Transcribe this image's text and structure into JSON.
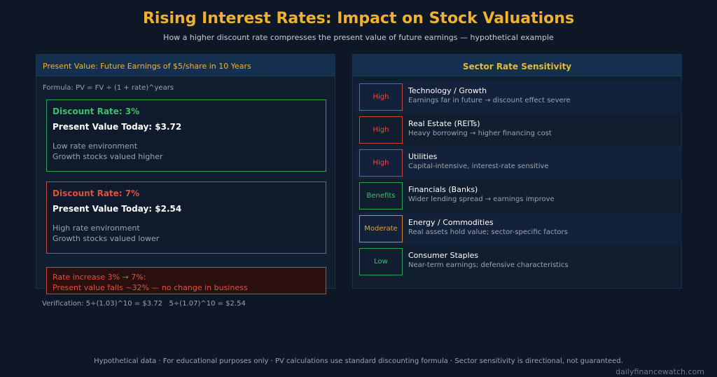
{
  "header": {
    "title": "Rising Interest Rates: Impact on Stock Valuations",
    "subtitle": "How a higher discount rate compresses the present value of future earnings — hypothetical example"
  },
  "left_panel": {
    "title": "Present Value: Future Earnings of $5/share in 10 Years",
    "formula": "Formula: PV = FV ÷ (1 + rate)^years",
    "scenarios": [
      {
        "rate_label": "Discount Rate: 3%",
        "pv_label": "Present Value Today: $3.72",
        "note1": "Low rate environment",
        "note2": "Growth stocks valued higher",
        "color": "#3cbf6c"
      },
      {
        "rate_label": "Discount Rate: 7%",
        "pv_label": "Present Value Today: $2.54",
        "note1": "High rate environment",
        "note2": "Growth stocks valued lower",
        "color": "#e0503c"
      }
    ],
    "warning_line1": "Rate increase 3% → 7%:",
    "warning_line2": "Present value falls ~32% — no change in business"
  },
  "verification": "Verification: 5÷(1.03)^10 = $3.72   5÷(1.07)^10 = $2.54",
  "right_panel": {
    "title": "Sector Rate Sensitivity",
    "sectors": [
      {
        "badge": "High",
        "name": "Technology / Growth",
        "desc": "Earnings far in future → discount effect severe"
      },
      {
        "badge": "High",
        "name": "Real Estate (REITs)",
        "desc": "Heavy borrowing → higher financing cost"
      },
      {
        "badge": "High",
        "name": "Utilities",
        "desc": "Capital-intensive, interest-rate sensitive"
      },
      {
        "badge": "Benefits",
        "name": "Financials (Banks)",
        "desc": "Wider lending spread → earnings improve"
      },
      {
        "badge": "Moderate",
        "name": "Energy / Commodities",
        "desc": "Real assets hold value; sector-specific factors"
      },
      {
        "badge": "Low",
        "name": "Consumer Staples",
        "desc": "Near-term earnings; defensive characteristics"
      }
    ]
  },
  "footer": {
    "note": "Hypothetical data · For educational purposes only · PV calculations use standard discounting formula · Sector sensitivity is directional, not guaranteed.",
    "site": "dailyfinancewatch.com"
  },
  "colors": {
    "accent": "#f0b12e",
    "positive": "#3cbf6c",
    "negative": "#e0503c",
    "moderate": "#e8a040"
  }
}
